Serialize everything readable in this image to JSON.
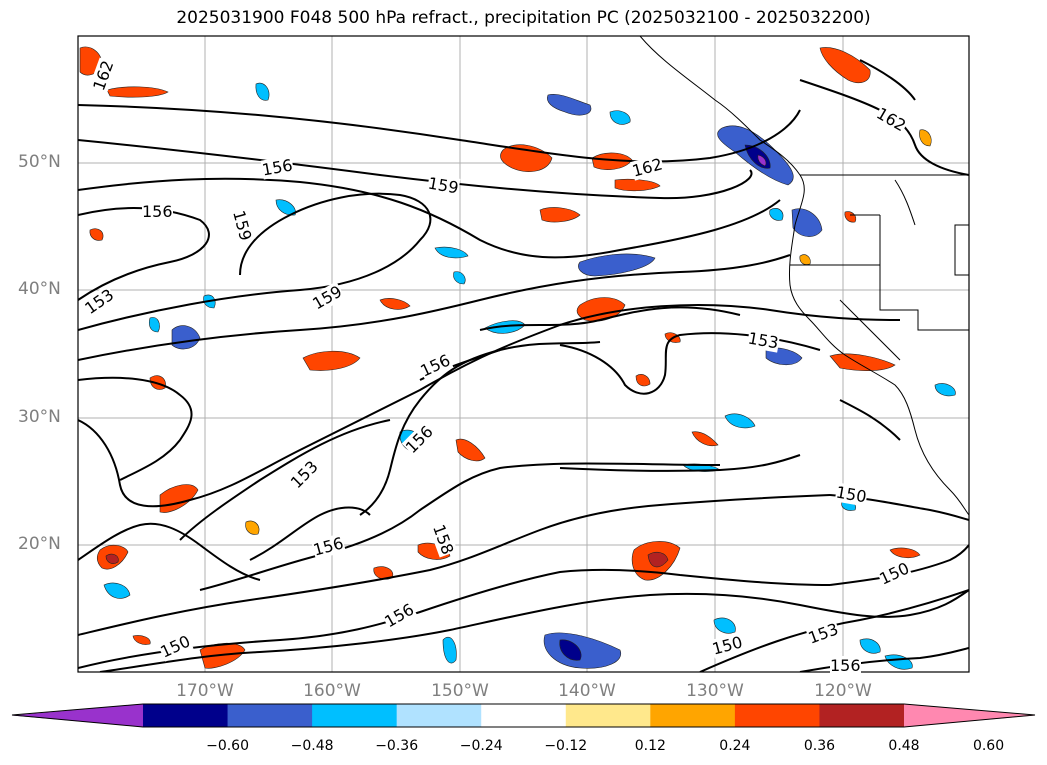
{
  "title": "2025031900 F048 500 hPa refract., precipitation PC (2025032100 - 2025032200)",
  "lat_labels": [
    "50°N",
    "40°N",
    "30°N",
    "20°N"
  ],
  "lon_labels": [
    "170°W",
    "160°W",
    "150°W",
    "140°W",
    "130°W",
    "120°W"
  ],
  "colorbar": {
    "ticks": [
      "−0.60",
      "−0.48",
      "−0.36",
      "−0.24",
      "−0.12",
      "0.12",
      "0.24",
      "0.36",
      "0.48",
      "0.60"
    ],
    "colors": [
      "#9932cc",
      "#00008b",
      "#3a5fcd",
      "#00bfff",
      "#b0e2ff",
      "#ffffff",
      "#ffe88c",
      "#ffa500",
      "#ff4500",
      "#b22222",
      "#ff88b0"
    ]
  },
  "contour_labels": [
    "162",
    "156",
    "159",
    "162",
    "156",
    "159",
    "153",
    "159",
    "156",
    "153",
    "156",
    "153",
    "150",
    "156",
    "158",
    "156",
    "150",
    "150",
    "150",
    "153",
    "156",
    "162"
  ]
}
